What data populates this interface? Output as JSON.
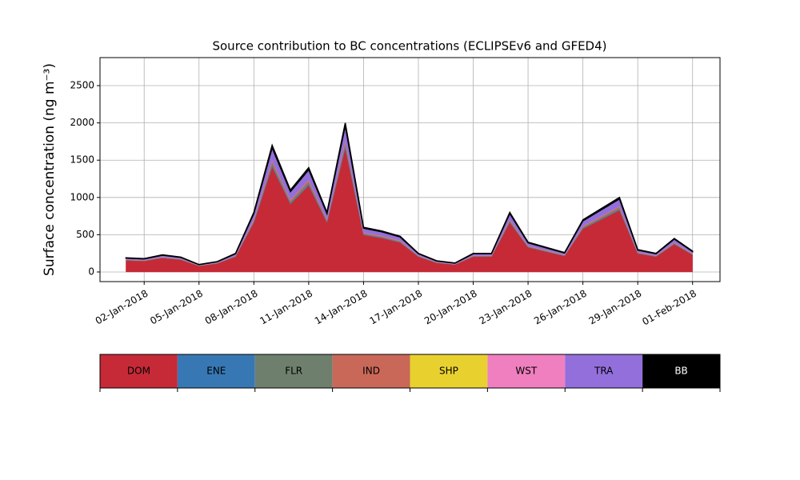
{
  "chart_data": {
    "type": "stacked_area",
    "title": "Source contribution to BC concentrations (ECLIPSEv6 and GFED4)",
    "y_label": "Surface concentration (ng m⁻³)",
    "x": [
      "2018-01-01",
      "2018-01-02",
      "2018-01-03",
      "2018-01-04",
      "2018-01-05",
      "2018-01-06",
      "2018-01-07",
      "2018-01-08",
      "2018-01-09",
      "2018-01-10",
      "2018-01-11",
      "2018-01-12",
      "2018-01-13",
      "2018-01-14",
      "2018-01-15",
      "2018-01-16",
      "2018-01-17",
      "2018-01-18",
      "2018-01-19",
      "2018-01-20",
      "2018-01-21",
      "2018-01-22",
      "2018-01-23",
      "2018-01-24",
      "2018-01-25",
      "2018-01-26",
      "2018-01-27",
      "2018-01-28",
      "2018-01-29",
      "2018-01-30",
      "2018-01-31",
      "2018-02-01"
    ],
    "series": [
      {
        "name": "DOM",
        "color": "#c62a37",
        "values": [
          155,
          146,
          188,
          164,
          81,
          114,
          205,
          662,
          1409,
          911,
          1160,
          662,
          1658,
          496,
          454,
          395,
          205,
          122,
          99,
          205,
          205,
          662,
          330,
          271,
          214,
          579,
          703,
          828,
          247,
          205,
          371,
          229
        ]
      },
      {
        "name": "ENE",
        "color": "#3778b4",
        "values": [
          2,
          2,
          2,
          2,
          1,
          1,
          3,
          8,
          17,
          11,
          14,
          8,
          20,
          6,
          6,
          5,
          3,
          2,
          1,
          3,
          3,
          8,
          4,
          3,
          3,
          7,
          9,
          10,
          3,
          3,
          5,
          3
        ]
      },
      {
        "name": "FLR",
        "color": "#6e7f6e",
        "values": [
          4,
          4,
          5,
          4,
          2,
          3,
          5,
          16,
          34,
          22,
          28,
          16,
          40,
          12,
          11,
          10,
          5,
          3,
          2,
          5,
          5,
          16,
          8,
          7,
          5,
          14,
          17,
          20,
          6,
          5,
          9,
          6
        ]
      },
      {
        "name": "IND",
        "color": "#c96858",
        "values": [
          4,
          4,
          5,
          4,
          2,
          3,
          5,
          16,
          34,
          22,
          28,
          16,
          40,
          12,
          11,
          10,
          5,
          3,
          2,
          5,
          5,
          16,
          8,
          7,
          5,
          14,
          17,
          20,
          6,
          5,
          9,
          6
        ]
      },
      {
        "name": "SHP",
        "color": "#e8d12e",
        "values": [
          1,
          1,
          1,
          1,
          1,
          1,
          1,
          1,
          1,
          1,
          1,
          1,
          1,
          1,
          1,
          1,
          1,
          1,
          1,
          1,
          1,
          1,
          1,
          1,
          1,
          1,
          1,
          1,
          1,
          1,
          1,
          1
        ]
      },
      {
        "name": "WST",
        "color": "#f07fbf",
        "values": [
          1,
          1,
          1,
          1,
          1,
          1,
          1,
          1,
          1,
          1,
          1,
          1,
          1,
          1,
          1,
          1,
          1,
          1,
          1,
          1,
          1,
          1,
          1,
          1,
          1,
          1,
          1,
          1,
          1,
          1,
          1,
          1
        ]
      },
      {
        "name": "TRA",
        "color": "#936fdc",
        "values": [
          19,
          18,
          23,
          20,
          10,
          14,
          25,
          80,
          170,
          110,
          140,
          80,
          200,
          60,
          55,
          48,
          25,
          15,
          12,
          25,
          25,
          80,
          40,
          33,
          26,
          70,
          85,
          100,
          30,
          25,
          45,
          28
        ]
      },
      {
        "name": "BB",
        "color": "#000000",
        "values": [
          4,
          4,
          5,
          4,
          2,
          3,
          5,
          16,
          34,
          22,
          28,
          16,
          40,
          12,
          11,
          10,
          5,
          3,
          2,
          5,
          5,
          16,
          8,
          7,
          5,
          14,
          17,
          20,
          6,
          5,
          9,
          6
        ]
      }
    ],
    "xlim": [
      "2017-12-30T14:00",
      "2018-02-02T12:00"
    ],
    "xticks": [
      {
        "value": "2018-01-02",
        "label": "02-Jan-2018"
      },
      {
        "value": "2018-01-05",
        "label": "05-Jan-2018"
      },
      {
        "value": "2018-01-08",
        "label": "08-Jan-2018"
      },
      {
        "value": "2018-01-11",
        "label": "11-Jan-2018"
      },
      {
        "value": "2018-01-14",
        "label": "14-Jan-2018"
      },
      {
        "value": "2018-01-17",
        "label": "17-Jan-2018"
      },
      {
        "value": "2018-01-20",
        "label": "20-Jan-2018"
      },
      {
        "value": "2018-01-23",
        "label": "23-Jan-2018"
      },
      {
        "value": "2018-01-26",
        "label": "26-Jan-2018"
      },
      {
        "value": "2018-01-29",
        "label": "29-Jan-2018"
      },
      {
        "value": "2018-02-01",
        "label": "01-Feb-2018"
      }
    ],
    "ylim": [
      -129,
      2876
    ],
    "yticks": [
      0,
      500,
      1000,
      1500,
      2000,
      2500
    ],
    "grid": true,
    "legend": "bottom"
  }
}
